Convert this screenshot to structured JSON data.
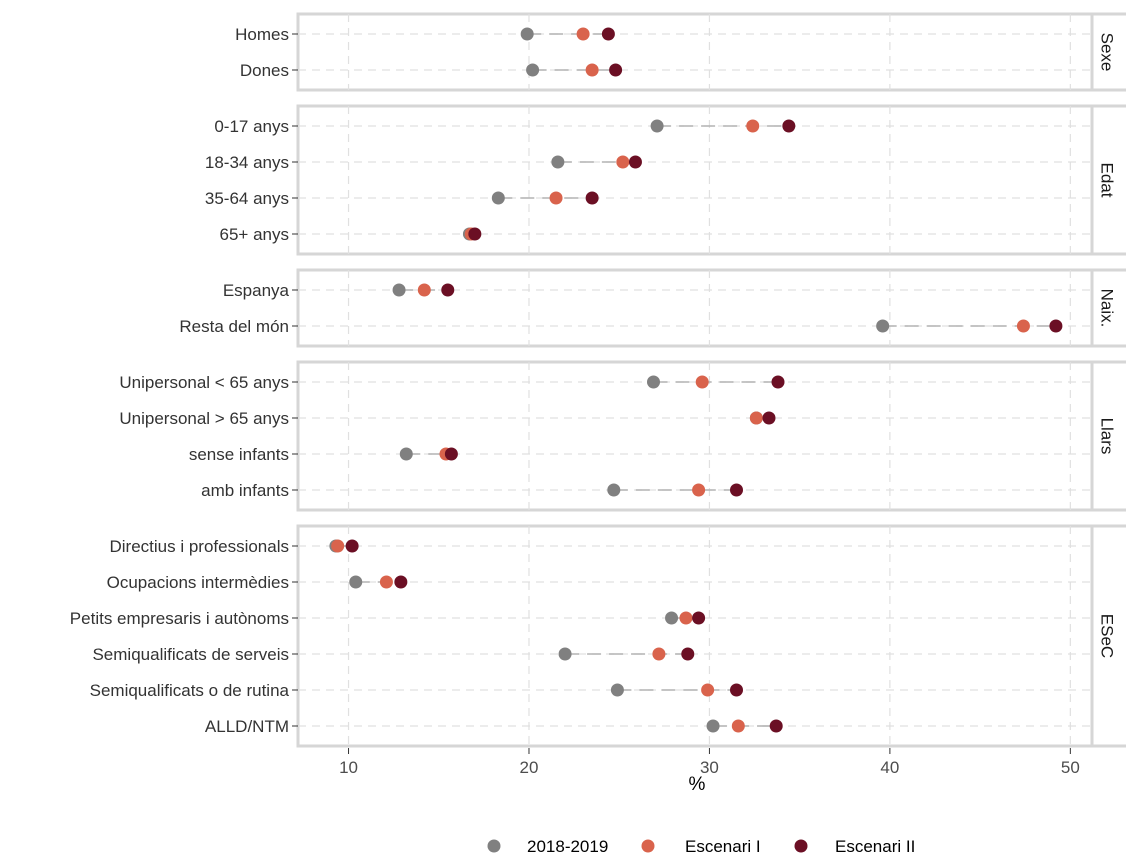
{
  "chart_data": {
    "type": "dumbbell",
    "xlabel": "%",
    "xlim": [
      7.2,
      51.2
    ],
    "xticks": [
      10,
      20,
      30,
      40,
      50
    ],
    "grid": true,
    "legend_position": "bottom",
    "series": [
      {
        "name": "2018-2019",
        "color": "#808080"
      },
      {
        "name": "Escenari I",
        "color": "#d9634c"
      },
      {
        "name": "Escenari II",
        "color": "#6b0f24"
      }
    ],
    "panels": [
      {
        "strip": "Sexe",
        "rows": [
          {
            "label": "Homes",
            "values": [
              19.9,
              23.0,
              24.4
            ]
          },
          {
            "label": "Dones",
            "values": [
              20.2,
              23.5,
              24.8
            ]
          }
        ]
      },
      {
        "strip": "Edat",
        "rows": [
          {
            "label": "0-17 anys",
            "values": [
              27.1,
              32.4,
              34.4
            ]
          },
          {
            "label": "18-34 anys",
            "values": [
              21.6,
              25.2,
              25.9
            ]
          },
          {
            "label": "35-64 anys",
            "values": [
              18.3,
              21.5,
              23.5
            ]
          },
          {
            "label": "65+ anys",
            "values": [
              16.7,
              16.8,
              17.0
            ]
          }
        ]
      },
      {
        "strip": "Naix.",
        "rows": [
          {
            "label": "Espanya",
            "values": [
              12.8,
              14.2,
              15.5
            ]
          },
          {
            "label": "Resta del món",
            "values": [
              39.6,
              47.4,
              49.2
            ]
          }
        ]
      },
      {
        "strip": "Llars",
        "rows": [
          {
            "label": "Unipersonal < 65 anys",
            "values": [
              26.9,
              29.6,
              33.8
            ]
          },
          {
            "label": "Unipersonal > 65 anys",
            "values": [
              32.6,
              32.6,
              33.3
            ]
          },
          {
            "label": "sense infants",
            "values": [
              13.2,
              15.4,
              15.7
            ]
          },
          {
            "label": "amb infants",
            "values": [
              24.7,
              29.4,
              31.5
            ]
          }
        ]
      },
      {
        "strip": "ESeC",
        "rows": [
          {
            "label": "Directius i professionals",
            "values": [
              9.3,
              9.4,
              10.2
            ]
          },
          {
            "label": "Ocupacions intermèdies",
            "values": [
              10.4,
              12.1,
              12.9
            ]
          },
          {
            "label": "Petits empresaris i autònoms",
            "values": [
              27.9,
              28.7,
              29.4
            ]
          },
          {
            "label": "Semiqualificats de serveis",
            "values": [
              22.0,
              27.2,
              28.8
            ]
          },
          {
            "label": "Semiqualificats o de rutina",
            "values": [
              24.9,
              29.9,
              31.5
            ]
          },
          {
            "label": "ALLD/NTM",
            "values": [
              30.2,
              31.6,
              33.7
            ]
          }
        ]
      }
    ]
  }
}
